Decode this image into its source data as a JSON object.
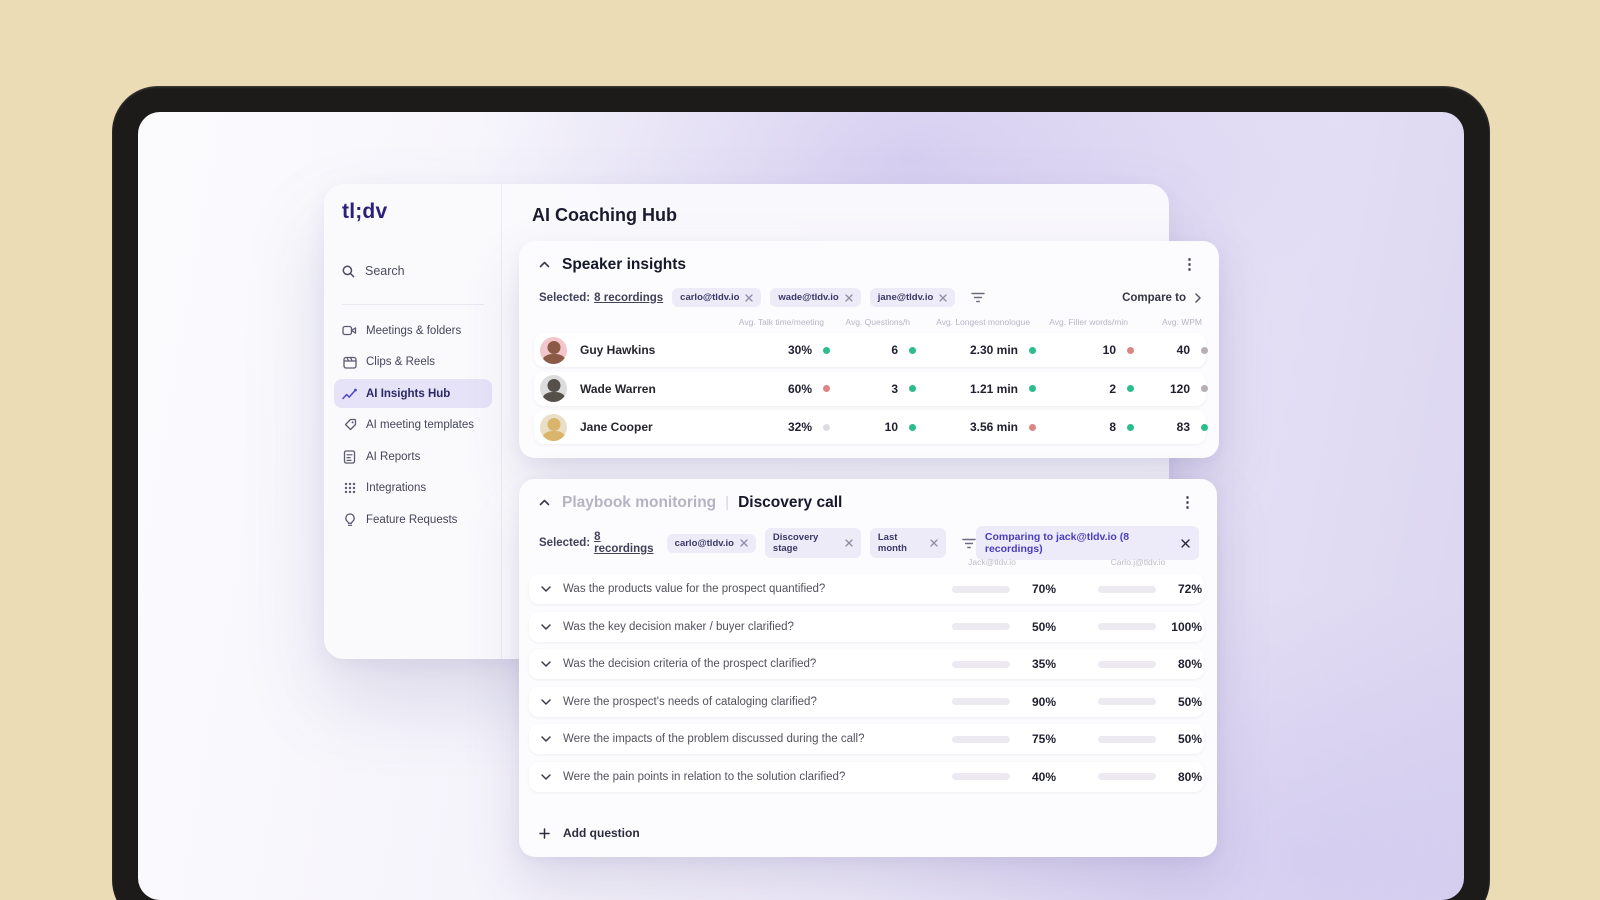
{
  "app": {
    "logo": "tl;dv",
    "page_title": "AI Coaching Hub"
  },
  "sidebar": {
    "search_label": "Search",
    "items": [
      {
        "label": "Meetings & folders"
      },
      {
        "label": "Clips & Reels"
      },
      {
        "label": "AI Insights Hub"
      },
      {
        "label": "AI meeting templates"
      },
      {
        "label": "AI Reports"
      },
      {
        "label": "Integrations"
      },
      {
        "label": "Feature Requests"
      }
    ]
  },
  "speaker_insights": {
    "title": "Speaker insights",
    "kebab": "⋮",
    "selected_label": "Selected:",
    "selected_count": "8 recordings",
    "filters": [
      "carlo@tldv.io",
      "wade@tldv.io",
      "jane@tldv.io"
    ],
    "compare_label": "Compare to",
    "columns": [
      "Avg. Talk time/meeting",
      "Avg. Questions/h",
      "Avg. Longest monologue",
      "Avg. Filler words/min",
      "Avg. WPM"
    ],
    "rows": [
      {
        "name": "Guy Hawkins",
        "avatar": {
          "bg": "#f2c6cb",
          "hair": "#8a5a44"
        },
        "cells": [
          {
            "value": "30%",
            "status": "green"
          },
          {
            "value": "6",
            "status": "green"
          },
          {
            "value": "2.30 min",
            "status": "green"
          },
          {
            "value": "10",
            "status": "red"
          },
          {
            "value": "40",
            "status": "gray"
          }
        ]
      },
      {
        "name": "Wade Warren",
        "avatar": {
          "bg": "#dcdcdc",
          "hair": "#55504a"
        },
        "cells": [
          {
            "value": "60%",
            "status": "red"
          },
          {
            "value": "3",
            "status": "green"
          },
          {
            "value": "1.21 min",
            "status": "green"
          },
          {
            "value": "2",
            "status": "green"
          },
          {
            "value": "120",
            "status": "gray"
          }
        ]
      },
      {
        "name": "Jane Cooper",
        "avatar": {
          "bg": "#eadfc6",
          "hair": "#d8b56a"
        },
        "cells": [
          {
            "value": "32%",
            "status": "lightgray"
          },
          {
            "value": "10",
            "status": "green"
          },
          {
            "value": "3.56 min",
            "status": "red"
          },
          {
            "value": "8",
            "status": "green"
          },
          {
            "value": "83",
            "status": "green"
          }
        ]
      }
    ]
  },
  "playbook": {
    "title_muted": "Playbook monitoring",
    "title_sep": "|",
    "title": "Discovery call",
    "kebab": "⋮",
    "selected_label": "Selected:",
    "selected_count": "8 recordings",
    "filters": [
      "carlo@tldv.io",
      "Discovery stage",
      "Last month"
    ],
    "comparing_label": "Comparing to jack@tldv.io (8 recordings)",
    "columns": [
      "Jack@tldv.io",
      "Carlo.j@tldv.io"
    ],
    "rows": [
      {
        "question": "Was the products value for the prospect quantified?",
        "left": {
          "pct": 70,
          "label": "70%",
          "color": "green"
        },
        "right": {
          "pct": 72,
          "label": "72%",
          "color": "green"
        }
      },
      {
        "question": "Was the key decision maker / buyer clarified?",
        "left": {
          "pct": 50,
          "label": "50%",
          "color": "pink"
        },
        "right": {
          "pct": 100,
          "label": "100%",
          "color": "green"
        }
      },
      {
        "question": "Was the decision criteria of the prospect clarified?",
        "left": {
          "pct": 35,
          "label": "35%",
          "color": "pink"
        },
        "right": {
          "pct": 80,
          "label": "80%",
          "color": "green"
        }
      },
      {
        "question": "Were the prospect's needs of cataloging clarified?",
        "left": {
          "pct": 90,
          "label": "90%",
          "color": "green"
        },
        "right": {
          "pct": 50,
          "label": "50%",
          "color": "pink"
        }
      },
      {
        "question": "Were the impacts of the problem discussed during the call?",
        "left": {
          "pct": 75,
          "label": "75%",
          "color": "green"
        },
        "right": {
          "pct": 50,
          "label": "50%",
          "color": "pink"
        }
      },
      {
        "question": "Were the pain points in relation to the solution clarified?",
        "left": {
          "pct": 40,
          "label": "40%",
          "color": "pink"
        },
        "right": {
          "pct": 80,
          "label": "80%",
          "color": "green"
        }
      }
    ],
    "add_label": "Add question"
  },
  "colors": {
    "accent_indigo": "#4f46c9",
    "green": "#2ac08e",
    "pink": "#f0a69c",
    "bezel": "#1d1b19",
    "background": "#ecdcb6"
  }
}
